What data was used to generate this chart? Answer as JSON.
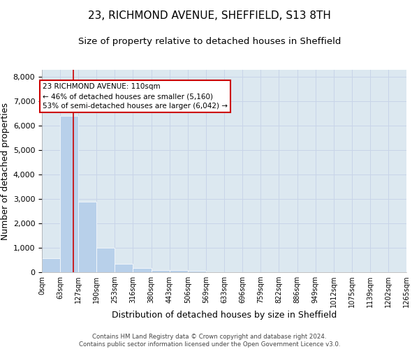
{
  "title": "23, RICHMOND AVENUE, SHEFFIELD, S13 8TH",
  "subtitle": "Size of property relative to detached houses in Sheffield",
  "xlabel": "Distribution of detached houses by size in Sheffield",
  "ylabel": "Number of detached properties",
  "footer_line1": "Contains HM Land Registry data © Crown copyright and database right 2024.",
  "footer_line2": "Contains public sector information licensed under the Open Government Licence v3.0.",
  "bin_edges": [
    0,
    63,
    127,
    190,
    253,
    316,
    380,
    443,
    506,
    569,
    633,
    696,
    759,
    822,
    886,
    949,
    1012,
    1075,
    1139,
    1202,
    1265
  ],
  "bar_heights": [
    560,
    6400,
    2900,
    1000,
    350,
    170,
    100,
    80,
    70,
    0,
    0,
    0,
    0,
    0,
    0,
    0,
    0,
    0,
    0,
    0
  ],
  "bar_color": "#b8d0ea",
  "property_size": 110,
  "vline_color": "#cc0000",
  "annotation_text": "23 RICHMOND AVENUE: 110sqm\n← 46% of detached houses are smaller (5,160)\n53% of semi-detached houses are larger (6,042) →",
  "annotation_box_color": "#cc0000",
  "ylim": [
    0,
    8300
  ],
  "yticks": [
    0,
    1000,
    2000,
    3000,
    4000,
    5000,
    6000,
    7000,
    8000
  ],
  "grid_color": "#c8d4e8",
  "bg_color": "#dce8f0",
  "title_fontsize": 11,
  "subtitle_fontsize": 9.5,
  "xlabel_fontsize": 9,
  "ylabel_fontsize": 9,
  "tick_fontsize": 7,
  "ytick_fontsize": 8
}
